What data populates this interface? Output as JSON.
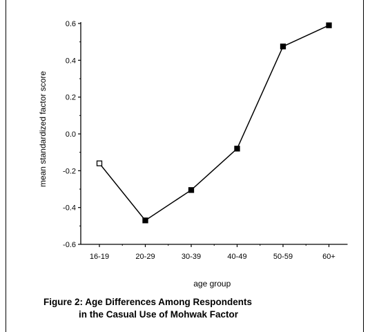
{
  "chart_data": {
    "type": "line",
    "xlabel": "age group",
    "ylabel": "mean standardized factor score",
    "categories": [
      "16-19",
      "20-29",
      "30-39",
      "40-49",
      "50-59",
      "60+"
    ],
    "ylim": [
      -0.6,
      0.6
    ],
    "yticks": [
      "-0.6",
      "-0.4",
      "-0.2",
      "0.0",
      "0.2",
      "0.4",
      "0.6"
    ],
    "series": [
      {
        "values": [
          -0.16,
          -0.47,
          -0.305,
          -0.08,
          0.475,
          0.59
        ]
      }
    ],
    "grid": false,
    "line_color": "#000000",
    "marker": "square"
  },
  "caption": {
    "line1": "Figure 2: Age Differences Among Respondents",
    "line2": "in the Casual Use of Mohwak Factor"
  }
}
